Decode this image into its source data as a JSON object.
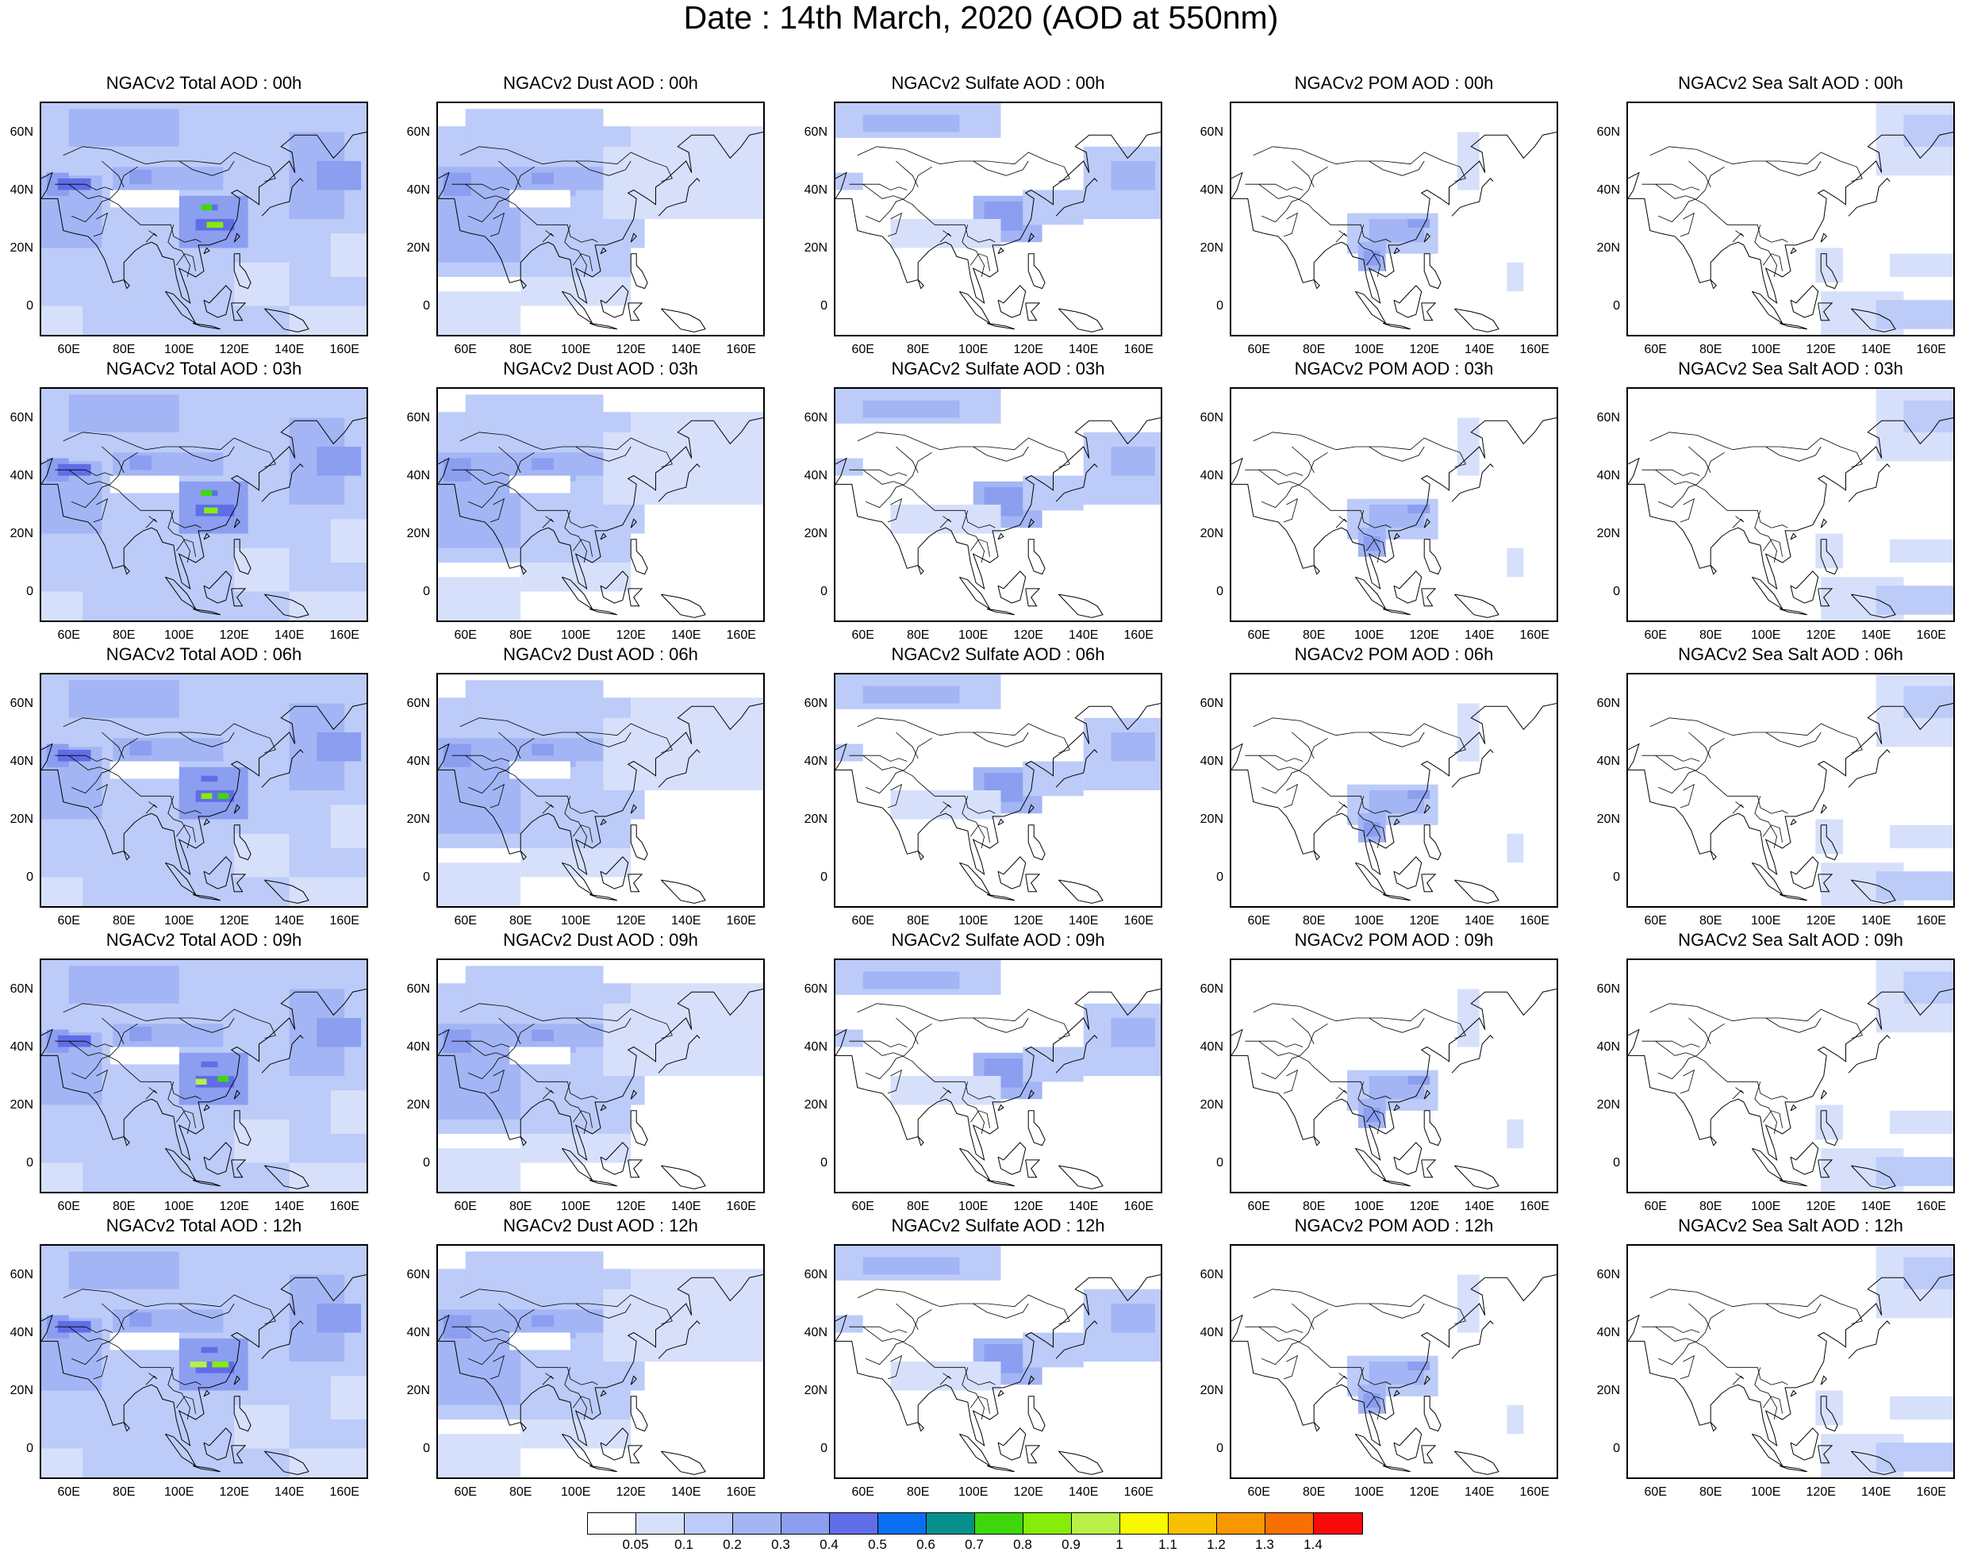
{
  "title": "Date : 14th March, 2020 (AOD at 550nm)",
  "x_ticks": [
    "60E",
    "80E",
    "100E",
    "120E",
    "140E",
    "160E"
  ],
  "y_ticks": [
    "60N",
    "40N",
    "20N",
    "0"
  ],
  "lon_range": [
    50,
    168
  ],
  "lat_range": [
    -10,
    70
  ],
  "panels": [
    [
      "NGACv2 Total AOD : 00h",
      "NGACv2 Dust AOD : 00h",
      "NGACv2 Sulfate AOD : 00h",
      "NGACv2 POM AOD : 00h",
      "NGACv2 Sea Salt AOD : 00h"
    ],
    [
      "NGACv2 Total AOD : 03h",
      "NGACv2 Dust AOD : 03h",
      "NGACv2 Sulfate AOD : 03h",
      "NGACv2 POM AOD : 03h",
      "NGACv2 Sea Salt AOD : 03h"
    ],
    [
      "NGACv2 Total AOD : 06h",
      "NGACv2 Dust AOD : 06h",
      "NGACv2 Sulfate AOD : 06h",
      "NGACv2 POM AOD : 06h",
      "NGACv2 Sea Salt AOD : 06h"
    ],
    [
      "NGACv2 Total AOD : 09h",
      "NGACv2 Dust AOD : 09h",
      "NGACv2 Sulfate AOD : 09h",
      "NGACv2 POM AOD : 09h",
      "NGACv2 Sea Salt  AOD : 09h"
    ],
    [
      "NGACv2 Total AOD  : 12h",
      "NGACv2 Dust AOD : 12h",
      "NGACv2 Sulfate AOD : 12h",
      "NGACv2 POM  AOD : 12h",
      "NGACv2 Sea Salt  AOD : 12h"
    ]
  ],
  "colorbar": {
    "labels": [
      "0.05",
      "0.1",
      "0.2",
      "0.3",
      "0.4",
      "0.5",
      "0.6",
      "0.7",
      "0.8",
      "0.9",
      "1",
      "1.1",
      "1.2",
      "1.3",
      "1.4"
    ],
    "colors": [
      "#ffffff",
      "#d6e0fb",
      "#bccbf8",
      "#a3b5f4",
      "#8b9ef0",
      "#5f6ee6",
      "#0a6ff0",
      "#05908e",
      "#3ed80c",
      "#86ec08",
      "#b8f048",
      "#f8f800",
      "#f8c000",
      "#f89800",
      "#f87000",
      "#f80a0a"
    ]
  }
}
